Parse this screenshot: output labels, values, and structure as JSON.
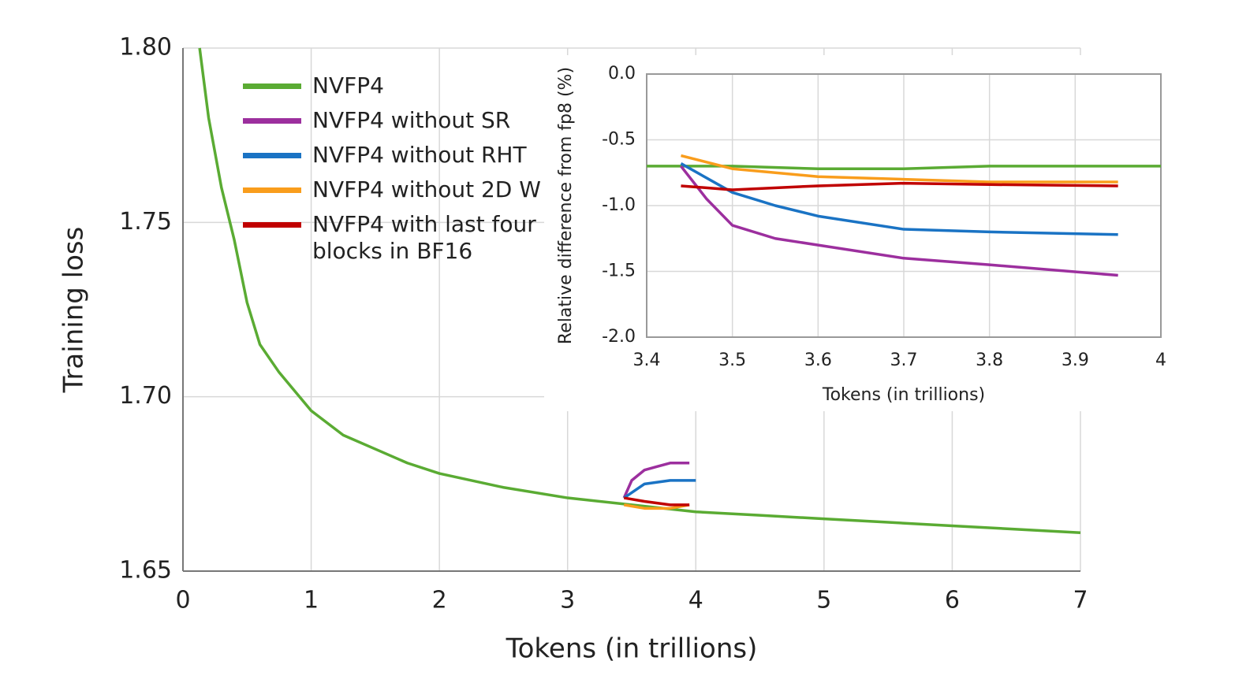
{
  "chart_data": [
    {
      "type": "line",
      "xlabel": "Tokens (in trillions)",
      "ylabel": "Training loss",
      "xlim": [
        0,
        7
      ],
      "ylim": [
        1.65,
        1.8
      ],
      "xticks": [
        0,
        1,
        2,
        3,
        4,
        5,
        6,
        7
      ],
      "yticks": [
        1.65,
        {
          "value": 1.7,
          "label": "1.70"
        },
        1.75,
        {
          "value": 1.8,
          "label": "1.80"
        }
      ],
      "grid": true,
      "legend": "upper left",
      "series": [
        {
          "name": "NVFP4",
          "color": "#5aab33",
          "x": [
            0.13,
            0.2,
            0.3,
            0.4,
            0.5,
            0.6,
            0.75,
            1.0,
            1.25,
            1.5,
            1.75,
            2.0,
            2.5,
            3.0,
            3.5,
            4.0,
            4.5,
            5.0,
            5.5,
            6.0,
            6.5,
            7.0
          ],
          "values": [
            1.8,
            1.78,
            1.76,
            1.745,
            1.727,
            1.715,
            1.707,
            1.696,
            1.689,
            1.685,
            1.681,
            1.678,
            1.674,
            1.671,
            1.669,
            1.667,
            1.666,
            1.665,
            1.664,
            1.663,
            1.662,
            1.661
          ]
        },
        {
          "name": "NVFP4 without SR",
          "color": "#9c2f9e",
          "x": [
            3.44,
            3.5,
            3.6,
            3.7,
            3.8,
            3.95
          ],
          "values": [
            1.671,
            1.676,
            1.679,
            1.68,
            1.681,
            1.681
          ]
        },
        {
          "name": "NVFP4 without RHT",
          "color": "#1a73c4",
          "x": [
            3.44,
            3.6,
            3.8,
            4.0
          ],
          "values": [
            1.671,
            1.675,
            1.676,
            1.676
          ]
        },
        {
          "name": "NVFP4 without 2D W",
          "color": "#f99d1c",
          "x": [
            3.44,
            3.6,
            3.8,
            3.95
          ],
          "values": [
            1.669,
            1.668,
            1.668,
            1.669
          ]
        },
        {
          "name": "NVFP4 with last four blocks in BF16",
          "color": "#c00000",
          "x": [
            3.44,
            3.6,
            3.8,
            3.95
          ],
          "values": [
            1.671,
            1.67,
            1.669,
            1.669
          ]
        }
      ]
    },
    {
      "type": "line",
      "xlabel": "Tokens (in trillions)",
      "ylabel": "Relative difference from fp8 (%)",
      "xlim": [
        3.4,
        4
      ],
      "ylim": [
        -2,
        0
      ],
      "xticks": [
        3.4,
        3.5,
        3.6,
        3.7,
        3.8,
        3.9,
        4
      ],
      "yticks": [
        {
          "value": -2,
          "label": "-2.0"
        },
        -1.5,
        {
          "value": -1,
          "label": "-1.0"
        },
        -0.5,
        {
          "value": 0,
          "label": "0.0"
        }
      ],
      "grid": true,
      "series": [
        {
          "color": "#5aab33",
          "x": [
            3.4,
            3.5,
            3.6,
            3.7,
            3.8,
            3.9,
            4.0
          ],
          "values": [
            -0.7,
            -0.7,
            -0.72,
            -0.72,
            -0.7,
            -0.7,
            -0.7
          ]
        },
        {
          "color": "#9c2f9e",
          "x": [
            3.44,
            3.47,
            3.5,
            3.55,
            3.6,
            3.7,
            3.8,
            3.95
          ],
          "values": [
            -0.7,
            -0.95,
            -1.15,
            -1.25,
            -1.3,
            -1.4,
            -1.45,
            -1.53
          ]
        },
        {
          "color": "#1a73c4",
          "x": [
            3.44,
            3.5,
            3.55,
            3.6,
            3.7,
            3.8,
            3.95
          ],
          "values": [
            -0.68,
            -0.9,
            -1.0,
            -1.08,
            -1.18,
            -1.2,
            -1.22
          ]
        },
        {
          "color": "#f99d1c",
          "x": [
            3.44,
            3.5,
            3.6,
            3.7,
            3.8,
            3.95
          ],
          "values": [
            -0.62,
            -0.72,
            -0.78,
            -0.8,
            -0.82,
            -0.82
          ]
        },
        {
          "color": "#c00000",
          "x": [
            3.44,
            3.5,
            3.6,
            3.7,
            3.8,
            3.95
          ],
          "values": [
            -0.85,
            -0.88,
            -0.85,
            -0.83,
            -0.84,
            -0.85
          ]
        }
      ]
    }
  ]
}
